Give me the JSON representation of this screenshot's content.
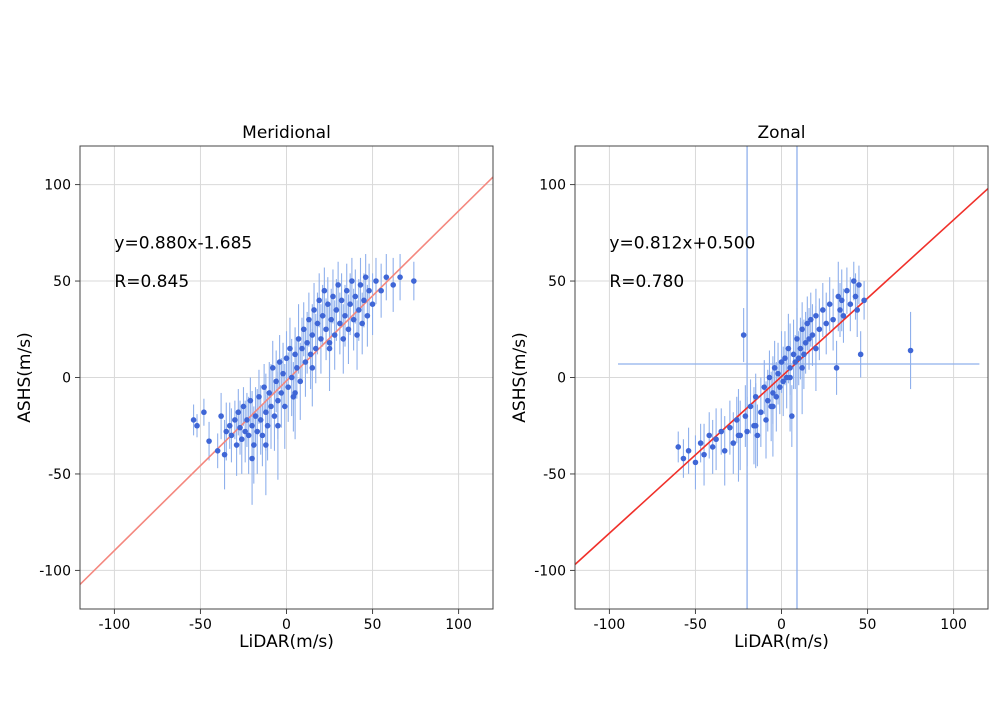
{
  "chart_data": [
    {
      "type": "scatter",
      "title": "Meridional",
      "xlabel": "LiDAR(m/s)",
      "ylabel": "ASHS(m/s)",
      "xlim": [
        -120,
        120
      ],
      "ylim": [
        -120,
        120
      ],
      "xticks": [
        -100,
        -50,
        0,
        50,
        100
      ],
      "yticks": [
        -100,
        -50,
        0,
        50,
        100
      ],
      "grid": true,
      "annotations": [
        "y=0.880x-1.685",
        "R=0.845"
      ],
      "fit": {
        "slope": 0.88,
        "intercept": -1.685,
        "color": "#f4877e"
      },
      "point_color": "#3f66d6",
      "errorbar_color": "#8fb0ec",
      "points": [
        [
          -54,
          -22,
          8
        ],
        [
          -52,
          -25,
          6
        ],
        [
          -48,
          -18,
          7
        ],
        [
          -45,
          -33,
          10
        ],
        [
          -40,
          -38,
          9
        ],
        [
          -38,
          -20,
          12
        ],
        [
          -35,
          -28,
          15
        ],
        [
          -33,
          -25,
          12
        ],
        [
          -32,
          -30,
          14
        ],
        [
          -30,
          -22,
          10
        ],
        [
          -29,
          -35,
          16
        ],
        [
          -28,
          -18,
          12
        ],
        [
          -27,
          -26,
          14
        ],
        [
          -26,
          -32,
          18
        ],
        [
          -25,
          -15,
          10
        ],
        [
          -24,
          -28,
          16
        ],
        [
          -23,
          -22,
          14
        ],
        [
          -22,
          -30,
          20
        ],
        [
          -21,
          -12,
          12
        ],
        [
          -20,
          -25,
          18
        ],
        [
          -19,
          -35,
          20
        ],
        [
          -18,
          -20,
          15
        ],
        [
          -17,
          -28,
          22
        ],
        [
          -16,
          -10,
          14
        ],
        [
          -15,
          -22,
          18
        ],
        [
          -14,
          -30,
          16
        ],
        [
          -13,
          -5,
          12
        ],
        [
          -12,
          -18,
          20
        ],
        [
          -11,
          -25,
          18
        ],
        [
          -10,
          -8,
          16
        ],
        [
          -9,
          -15,
          22
        ],
        [
          -8,
          5,
          14
        ],
        [
          -7,
          -20,
          18
        ],
        [
          -6,
          -2,
          16
        ],
        [
          -5,
          -12,
          20
        ],
        [
          -4,
          8,
          14
        ],
        [
          -3,
          -8,
          18
        ],
        [
          -2,
          2,
          16
        ],
        [
          -1,
          -15,
          22
        ],
        [
          0,
          10,
          14
        ],
        [
          1,
          -5,
          18
        ],
        [
          2,
          15,
          16
        ],
        [
          3,
          0,
          20
        ],
        [
          4,
          -10,
          18
        ],
        [
          5,
          12,
          14
        ],
        [
          6,
          5,
          16
        ],
        [
          7,
          20,
          18
        ],
        [
          8,
          -2,
          20
        ],
        [
          9,
          15,
          16
        ],
        [
          10,
          25,
          14
        ],
        [
          11,
          8,
          18
        ],
        [
          12,
          18,
          16
        ],
        [
          13,
          30,
          14
        ],
        [
          14,
          12,
          18
        ],
        [
          15,
          22,
          16
        ],
        [
          16,
          35,
          14
        ],
        [
          17,
          15,
          18
        ],
        [
          18,
          28,
          16
        ],
        [
          19,
          40,
          14
        ],
        [
          20,
          20,
          18
        ],
        [
          21,
          32,
          16
        ],
        [
          22,
          45,
          12
        ],
        [
          23,
          25,
          16
        ],
        [
          24,
          38,
          14
        ],
        [
          25,
          18,
          18
        ],
        [
          26,
          30,
          16
        ],
        [
          27,
          42,
          14
        ],
        [
          28,
          22,
          18
        ],
        [
          29,
          35,
          16
        ],
        [
          30,
          48,
          12
        ],
        [
          31,
          28,
          16
        ],
        [
          32,
          40,
          14
        ],
        [
          33,
          20,
          18
        ],
        [
          34,
          32,
          16
        ],
        [
          35,
          45,
          14
        ],
        [
          36,
          25,
          18
        ],
        [
          37,
          38,
          16
        ],
        [
          38,
          50,
          12
        ],
        [
          39,
          30,
          16
        ],
        [
          40,
          42,
          14
        ],
        [
          41,
          22,
          18
        ],
        [
          42,
          35,
          16
        ],
        [
          43,
          48,
          14
        ],
        [
          44,
          28,
          16
        ],
        [
          45,
          40,
          14
        ],
        [
          46,
          52,
          12
        ],
        [
          47,
          32,
          16
        ],
        [
          48,
          45,
          14
        ],
        [
          50,
          38,
          16
        ],
        [
          52,
          50,
          12
        ],
        [
          55,
          45,
          14
        ],
        [
          58,
          52,
          12
        ],
        [
          62,
          48,
          14
        ],
        [
          66,
          52,
          12
        ],
        [
          74,
          50,
          10
        ],
        [
          -36,
          -40,
          18
        ],
        [
          -20,
          -42,
          24
        ],
        [
          -12,
          -35,
          26
        ],
        [
          -5,
          -25,
          28
        ],
        [
          5,
          -8,
          24
        ],
        [
          15,
          5,
          20
        ],
        [
          25,
          15,
          22
        ]
      ]
    },
    {
      "type": "scatter",
      "title": "Zonal",
      "xlabel": "LiDAR(m/s)",
      "ylabel": "ASHS(m/s)",
      "xlim": [
        -120,
        120
      ],
      "ylim": [
        -120,
        120
      ],
      "xticks": [
        -100,
        -50,
        0,
        50,
        100
      ],
      "yticks": [
        -100,
        -50,
        0,
        50,
        100
      ],
      "grid": true,
      "annotations": [
        "y=0.812x+0.500",
        "R=0.780"
      ],
      "fit": {
        "slope": 0.812,
        "intercept": 0.5,
        "color": "#f0302a"
      },
      "point_color": "#3f66d6",
      "errorbar_color": "#8fb0ec",
      "points": [
        [
          -60,
          -36,
          8
        ],
        [
          -57,
          -42,
          10
        ],
        [
          -54,
          -38,
          12
        ],
        [
          -50,
          -44,
          14
        ],
        [
          -47,
          -34,
          10
        ],
        [
          -45,
          -40,
          16
        ],
        [
          -42,
          -30,
          12
        ],
        [
          -40,
          -36,
          14
        ],
        [
          -38,
          -32,
          16
        ],
        [
          -35,
          -28,
          12
        ],
        [
          -33,
          -38,
          18
        ],
        [
          -30,
          -26,
          14
        ],
        [
          -28,
          -34,
          16
        ],
        [
          -26,
          -22,
          12
        ],
        [
          -24,
          -30,
          18
        ],
        [
          -22,
          22,
          14
        ],
        [
          -21,
          -20,
          16
        ],
        [
          -20,
          -28,
          18
        ],
        [
          -18,
          -15,
          14
        ],
        [
          -16,
          -25,
          20
        ],
        [
          -15,
          -10,
          12
        ],
        [
          -14,
          -30,
          16
        ],
        [
          -12,
          -18,
          18
        ],
        [
          -10,
          -5,
          14
        ],
        [
          -9,
          -22,
          20
        ],
        [
          -8,
          -12,
          16
        ],
        [
          -7,
          0,
          14
        ],
        [
          -6,
          -15,
          18
        ],
        [
          -5,
          -8,
          16
        ],
        [
          -4,
          5,
          14
        ],
        [
          -3,
          -10,
          18
        ],
        [
          -2,
          2,
          16
        ],
        [
          -1,
          -5,
          14
        ],
        [
          0,
          8,
          16
        ],
        [
          1,
          -2,
          18
        ],
        [
          2,
          10,
          14
        ],
        [
          3,
          0,
          16
        ],
        [
          4,
          15,
          18
        ],
        [
          5,
          5,
          14
        ],
        [
          6,
          -20,
          16
        ],
        [
          7,
          12,
          18
        ],
        [
          8,
          8,
          14
        ],
        [
          9,
          20,
          16
        ],
        [
          10,
          10,
          14
        ],
        [
          11,
          15,
          16
        ],
        [
          12,
          25,
          14
        ],
        [
          13,
          12,
          18
        ],
        [
          14,
          18,
          16
        ],
        [
          15,
          28,
          14
        ],
        [
          16,
          20,
          16
        ],
        [
          17,
          30,
          14
        ],
        [
          18,
          22,
          16
        ],
        [
          20,
          32,
          14
        ],
        [
          22,
          25,
          16
        ],
        [
          24,
          35,
          14
        ],
        [
          26,
          28,
          16
        ],
        [
          28,
          38,
          14
        ],
        [
          30,
          30,
          16
        ],
        [
          32,
          5,
          14
        ],
        [
          33,
          42,
          18
        ],
        [
          34,
          35,
          14
        ],
        [
          35,
          40,
          16
        ],
        [
          36,
          32,
          14
        ],
        [
          38,
          45,
          12
        ],
        [
          40,
          38,
          14
        ],
        [
          42,
          50,
          10
        ],
        [
          43,
          42,
          12
        ],
        [
          44,
          35,
          14
        ],
        [
          45,
          48,
          10
        ],
        [
          46,
          12,
          12
        ],
        [
          48,
          40,
          10
        ],
        [
          75,
          14,
          20
        ],
        [
          -25,
          -30,
          24
        ],
        [
          -15,
          -25,
          22
        ],
        [
          -5,
          -15,
          26
        ],
        [
          5,
          0,
          28
        ],
        [
          12,
          5,
          24
        ],
        [
          20,
          15,
          22
        ]
      ],
      "outlier_xerr": [
        {
          "x": 5,
          "y": 7,
          "xmin": -95,
          "xmax": 115
        },
        {
          "x": -20,
          "y": 0,
          "ymin": -120,
          "ymax": 120
        },
        {
          "x": 9,
          "y": 0,
          "ymin": -120,
          "ymax": 120
        }
      ]
    }
  ]
}
